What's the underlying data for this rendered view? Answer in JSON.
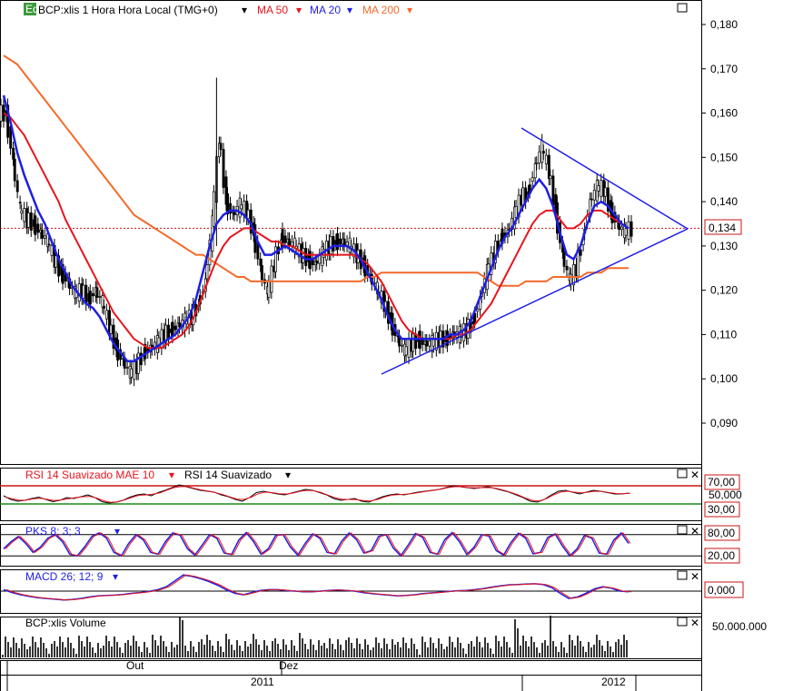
{
  "header": {
    "icon_text": "Eq",
    "symbol_label": "BCP:xlis 1 Hora Hora Local (TMG+0)",
    "ma_labels": [
      {
        "text": "MA 50",
        "color": "#e8141c"
      },
      {
        "text": "MA 20",
        "color": "#1e1ee6"
      },
      {
        "text": "MA 200",
        "color": "#f46a2a"
      }
    ]
  },
  "colors": {
    "up": "#ffffff",
    "down": "#000000",
    "ma50": "#e8141c",
    "ma20": "#1e1ee6",
    "ma200": "#f46a2a",
    "trendline": "#1e1ee6",
    "price_line": "#c81414"
  },
  "chart_data": [
    {
      "type": "candlestick",
      "title": "BCP:xlis 1 Hora Hora Local (TMG+0)",
      "ylim": [
        0.08,
        0.185
      ],
      "y_ticks": [
        "0,180",
        "0,170",
        "0,160",
        "0,150",
        "0,140",
        "0,130",
        "0,120",
        "0,110",
        "0,100",
        "0,090"
      ],
      "y_tick_values": [
        0.18,
        0.17,
        0.16,
        0.15,
        0.14,
        0.13,
        0.12,
        0.11,
        0.1,
        0.09
      ],
      "last_price": "0,134",
      "last_price_value": 0.134,
      "close": [
        0.16,
        0.149,
        0.138,
        0.136,
        0.135,
        0.133,
        0.131,
        0.127,
        0.124,
        0.122,
        0.119,
        0.12,
        0.118,
        0.12,
        0.117,
        0.112,
        0.107,
        0.104,
        0.101,
        0.103,
        0.106,
        0.107,
        0.108,
        0.11,
        0.111,
        0.112,
        0.113,
        0.114,
        0.117,
        0.122,
        0.135,
        0.155,
        0.14,
        0.137,
        0.139,
        0.138,
        0.133,
        0.125,
        0.119,
        0.126,
        0.132,
        0.131,
        0.13,
        0.128,
        0.127,
        0.126,
        0.128,
        0.13,
        0.131,
        0.131,
        0.13,
        0.128,
        0.126,
        0.123,
        0.12,
        0.117,
        0.113,
        0.109,
        0.106,
        0.108,
        0.109,
        0.108,
        0.108,
        0.109,
        0.109,
        0.11,
        0.11,
        0.111,
        0.113,
        0.118,
        0.124,
        0.128,
        0.132,
        0.133,
        0.137,
        0.141,
        0.142,
        0.148,
        0.152,
        0.147,
        0.138,
        0.128,
        0.122,
        0.125,
        0.132,
        0.14,
        0.143,
        0.143,
        0.138,
        0.135,
        0.133,
        0.134
      ],
      "ma20": [
        0.164,
        0.158,
        0.151,
        0.146,
        0.142,
        0.138,
        0.135,
        0.131,
        0.127,
        0.124,
        0.121,
        0.119,
        0.117,
        0.116,
        0.114,
        0.111,
        0.108,
        0.106,
        0.104,
        0.104,
        0.105,
        0.106,
        0.107,
        0.108,
        0.109,
        0.11,
        0.112,
        0.114,
        0.118,
        0.124,
        0.13,
        0.135,
        0.137,
        0.138,
        0.138,
        0.137,
        0.135,
        0.131,
        0.128,
        0.128,
        0.129,
        0.13,
        0.129,
        0.128,
        0.127,
        0.127,
        0.128,
        0.129,
        0.13,
        0.13,
        0.13,
        0.129,
        0.127,
        0.124,
        0.121,
        0.118,
        0.114,
        0.111,
        0.109,
        0.109,
        0.109,
        0.109,
        0.109,
        0.109,
        0.109,
        0.11,
        0.11,
        0.111,
        0.113,
        0.117,
        0.121,
        0.125,
        0.129,
        0.132,
        0.134,
        0.137,
        0.14,
        0.143,
        0.145,
        0.143,
        0.139,
        0.133,
        0.128,
        0.127,
        0.13,
        0.135,
        0.139,
        0.14,
        0.139,
        0.137,
        0.135,
        0.134
      ],
      "ma50": [
        0.16,
        0.159,
        0.157,
        0.155,
        0.152,
        0.149,
        0.146,
        0.143,
        0.14,
        0.136,
        0.133,
        0.13,
        0.127,
        0.124,
        0.121,
        0.118,
        0.115,
        0.113,
        0.111,
        0.109,
        0.108,
        0.107,
        0.107,
        0.107,
        0.108,
        0.109,
        0.11,
        0.112,
        0.115,
        0.119,
        0.123,
        0.127,
        0.13,
        0.132,
        0.133,
        0.134,
        0.134,
        0.133,
        0.132,
        0.131,
        0.131,
        0.13,
        0.13,
        0.129,
        0.128,
        0.128,
        0.128,
        0.128,
        0.128,
        0.128,
        0.128,
        0.128,
        0.127,
        0.126,
        0.124,
        0.122,
        0.119,
        0.116,
        0.113,
        0.111,
        0.11,
        0.109,
        0.109,
        0.109,
        0.109,
        0.109,
        0.11,
        0.11,
        0.111,
        0.113,
        0.115,
        0.117,
        0.12,
        0.123,
        0.126,
        0.129,
        0.132,
        0.135,
        0.137,
        0.138,
        0.138,
        0.136,
        0.134,
        0.134,
        0.135,
        0.137,
        0.138,
        0.138,
        0.137,
        0.136,
        0.135,
        0.134
      ],
      "ma200": [
        0.173,
        0.172,
        0.171,
        0.169,
        0.167,
        0.165,
        0.163,
        0.161,
        0.159,
        0.157,
        0.155,
        0.153,
        0.151,
        0.149,
        0.147,
        0.145,
        0.143,
        0.141,
        0.139,
        0.137,
        0.136,
        0.135,
        0.134,
        0.133,
        0.132,
        0.131,
        0.13,
        0.129,
        0.128,
        0.128,
        0.127,
        0.126,
        0.125,
        0.124,
        0.123,
        0.123,
        0.122,
        0.122,
        0.122,
        0.122,
        0.122,
        0.122,
        0.122,
        0.122,
        0.122,
        0.122,
        0.122,
        0.122,
        0.122,
        0.122,
        0.122,
        0.122,
        0.122,
        0.123,
        0.123,
        0.124,
        0.124,
        0.124,
        0.124,
        0.124,
        0.124,
        0.124,
        0.124,
        0.124,
        0.124,
        0.124,
        0.124,
        0.124,
        0.124,
        0.124,
        0.123,
        0.122,
        0.121,
        0.121,
        0.121,
        0.121,
        0.122,
        0.122,
        0.122,
        0.122,
        0.123,
        0.123,
        0.123,
        0.123,
        0.123,
        0.124,
        0.124,
        0.124,
        0.125,
        0.125,
        0.125,
        0.125
      ]
    },
    {
      "type": "line",
      "title": "RSI 14 Suavizado MAE 10",
      "series_label": "RSI 14 Suavizado",
      "ylim": [
        0,
        100
      ],
      "levels": [
        70,
        30
      ],
      "y_ticks": [
        "70,00",
        "50,000",
        "30,00"
      ],
      "values": [
        48,
        40,
        36,
        38,
        42,
        45,
        40,
        35,
        38,
        44,
        42,
        46,
        50,
        44,
        35,
        32,
        34,
        38,
        45,
        50,
        52,
        48,
        55,
        60,
        66,
        72,
        68,
        64,
        60,
        58,
        56,
        50,
        46,
        40,
        36,
        44,
        55,
        58,
        55,
        52,
        50,
        54,
        58,
        62,
        60,
        55,
        50,
        42,
        38,
        40,
        42,
        36,
        34,
        40,
        46,
        50,
        52,
        50,
        53,
        56,
        58,
        60,
        62,
        66,
        70,
        68,
        66,
        64,
        66,
        68,
        64,
        60,
        56,
        50,
        44,
        36,
        34,
        40,
        50,
        58,
        60,
        56,
        52,
        56,
        60,
        58,
        55,
        52,
        52,
        54
      ]
    },
    {
      "type": "line",
      "title": "PKS 8; 3; 3",
      "ylim": [
        0,
        100
      ],
      "levels": [
        80,
        20
      ],
      "y_ticks": [
        "80,00",
        "20,00"
      ],
      "values": [
        40,
        60,
        75,
        55,
        30,
        45,
        70,
        80,
        60,
        25,
        20,
        45,
        75,
        85,
        70,
        30,
        20,
        55,
        80,
        65,
        30,
        25,
        60,
        85,
        78,
        40,
        22,
        50,
        80,
        70,
        28,
        24,
        65,
        86,
        60,
        25,
        40,
        78,
        80,
        45,
        22,
        55,
        82,
        70,
        30,
        26,
        62,
        85,
        66,
        28,
        35,
        75,
        80,
        42,
        20,
        50,
        83,
        72,
        30,
        25,
        66,
        86,
        60,
        24,
        45,
        80,
        76,
        35,
        22,
        58,
        84,
        70,
        26,
        30,
        72,
        82,
        48,
        20,
        40,
        78,
        70,
        28,
        25,
        65,
        85,
        55
      ]
    },
    {
      "type": "line",
      "title": "MACD 26; 12; 9",
      "y_ticks": [
        "0,000"
      ],
      "values": [
        0.2,
        -0.2,
        -0.5,
        -0.7,
        -0.9,
        -1.0,
        -1.1,
        -1.2,
        -1.15,
        -1.0,
        -0.8,
        -0.65,
        -0.6,
        -0.55,
        -0.45,
        -0.3,
        -0.2,
        -0.05,
        0.2,
        0.6,
        1.4,
        2.2,
        2.0,
        1.7,
        1.3,
        0.8,
        0.2,
        -0.3,
        -0.5,
        -0.2,
        0.1,
        0.2,
        0.2,
        0.1,
        0.0,
        -0.1,
        -0.1,
        0.0,
        0.1,
        0.15,
        0.1,
        0.0,
        -0.2,
        -0.35,
        -0.45,
        -0.55,
        -0.65,
        -0.6,
        -0.5,
        -0.35,
        -0.25,
        -0.15,
        -0.05,
        0.05,
        0.1,
        0.2,
        0.35,
        0.55,
        0.7,
        0.85,
        0.9,
        0.95,
        1.0,
        0.9,
        0.5,
        -0.3,
        -1.0,
        -0.8,
        -0.3,
        0.3,
        0.6,
        0.4,
        0.0,
        -0.1
      ]
    },
    {
      "type": "bar",
      "title": "BCP:xlis Volume",
      "y_ticks": [
        "50.000.000"
      ],
      "y_tick_values": [
        50000000
      ]
    }
  ],
  "x_axis": {
    "months": [
      "Out",
      "Dez"
    ],
    "years": [
      "2011",
      "2012"
    ]
  }
}
